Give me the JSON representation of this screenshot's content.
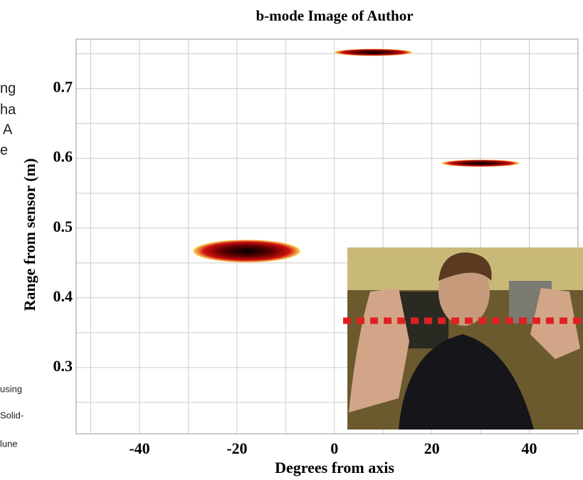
{
  "margin_text": [
    "ng",
    "ha",
    "A",
    "e",
    "using",
    "Solid-",
    "lune"
  ],
  "chart_data": {
    "type": "scatter",
    "title": "b-mode Image of Author",
    "x_label": "Degrees from axis",
    "y_label": "Range from sensor (m)",
    "x": [
      -18,
      8,
      30
    ],
    "values": [
      0.467,
      0.752,
      0.593
    ],
    "widths": [
      22,
      16,
      16
    ],
    "xlim": [
      -53,
      50
    ],
    "ylim": [
      0.205,
      0.771
    ],
    "xticks": [
      -40,
      -20,
      0,
      20,
      40
    ],
    "yticks": [
      0.3,
      0.4,
      0.5,
      0.6,
      0.7
    ],
    "xgrid": [
      -50,
      -40,
      -30,
      -20,
      -10,
      0,
      10,
      20,
      30,
      40,
      50
    ],
    "ygrid": [
      0.25,
      0.3,
      0.35,
      0.4,
      0.45,
      0.5,
      0.55,
      0.6,
      0.65,
      0.7,
      0.75
    ],
    "grid": true
  }
}
